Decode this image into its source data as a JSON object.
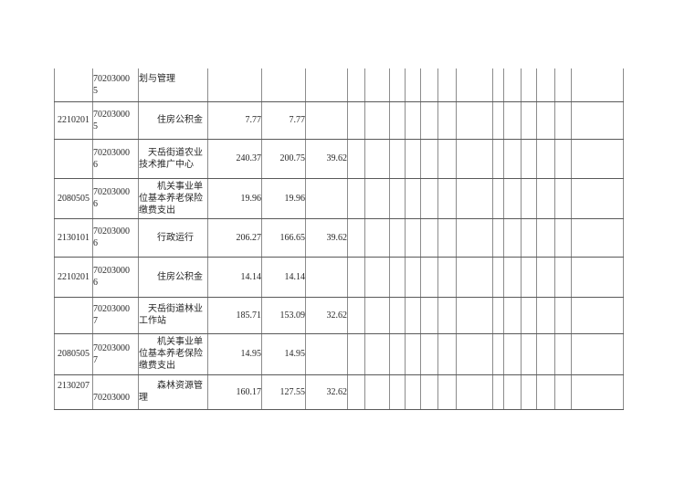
{
  "page": {
    "background": "#ffffff"
  },
  "colors": {
    "grid_vertical": "#8c8c8c",
    "grid_horizontal": "#595959",
    "text": "#262626"
  },
  "table": {
    "trailing_empty_column_count": 13,
    "rows": [
      {
        "program_code_lines": [
          ""
        ],
        "unit_code_lines": [
          "70203000",
          "5"
        ],
        "name_lines": [
          "划与管理",
          ""
        ],
        "amounts": [
          "",
          "",
          ""
        ]
      },
      {
        "program_code_lines": [
          "2210201"
        ],
        "unit_code_lines": [
          "70203000",
          "5"
        ],
        "name_lines": [
          "　　住房公积金"
        ],
        "amounts": [
          "7.77",
          "7.77",
          ""
        ]
      },
      {
        "program_code_lines": [
          ""
        ],
        "unit_code_lines": [
          "70203000",
          "6"
        ],
        "name_lines": [
          "　天岳街道农业",
          "技术推广中心"
        ],
        "amounts": [
          "240.37",
          "200.75",
          "39.62"
        ]
      },
      {
        "program_code_lines": [
          "2080505"
        ],
        "unit_code_lines": [
          "70203000",
          "6"
        ],
        "name_lines": [
          "　　机关事业单",
          "位基本养老保险",
          "缴费支出"
        ],
        "amounts": [
          "19.96",
          "19.96",
          ""
        ]
      },
      {
        "program_code_lines": [
          "2130101"
        ],
        "unit_code_lines": [
          "70203000",
          "6"
        ],
        "name_lines": [
          "　　行政运行"
        ],
        "amounts": [
          "206.27",
          "166.65",
          "39.62"
        ]
      },
      {
        "program_code_lines": [
          "2210201"
        ],
        "unit_code_lines": [
          "70203000",
          "6"
        ],
        "name_lines": [
          "　　住房公积金"
        ],
        "amounts": [
          "14.14",
          "14.14",
          ""
        ]
      },
      {
        "program_code_lines": [
          ""
        ],
        "unit_code_lines": [
          "70203000",
          "7"
        ],
        "name_lines": [
          "　天岳街道林业",
          "工作站"
        ],
        "amounts": [
          "185.71",
          "153.09",
          "32.62"
        ]
      },
      {
        "program_code_lines": [
          "2080505"
        ],
        "unit_code_lines": [
          "70203000",
          "7"
        ],
        "name_lines": [
          "　　机关事业单",
          "位基本养老保险",
          "缴费支出"
        ],
        "amounts": [
          "14.95",
          "14.95",
          ""
        ]
      },
      {
        "program_code_lines": [
          "2130207",
          ""
        ],
        "unit_code_lines": [
          "",
          "70203000"
        ],
        "name_lines": [
          "　　森林资源管",
          "理"
        ],
        "amounts": [
          "160.17",
          "127.55",
          "32.62"
        ]
      }
    ]
  }
}
